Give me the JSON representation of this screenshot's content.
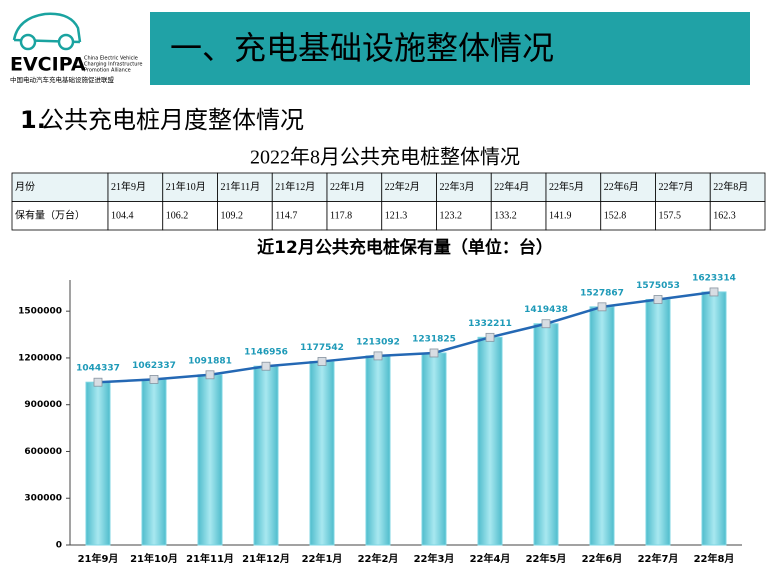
{
  "header": {
    "logo": "EVCIPA",
    "logo_subtitle": [
      "China Electric Vehicle",
      "Charging Infrastructure",
      "Promotion Alliance"
    ],
    "logo_cn": "中国电动汽车充电基础设施促进联盟",
    "title": "一、充电基础设施整体情况"
  },
  "section": {
    "number": "1.",
    "text": "公共充电桩月度整体情况"
  },
  "table": {
    "title": "2022年8月公共充电桩整体情况",
    "header": [
      "月份",
      "21年9月",
      "21年10月",
      "21年11月",
      "21年12月",
      "22年1月",
      "22年2月",
      "22年3月",
      "22年4月",
      "22年5月",
      "22年6月",
      "22年7月",
      "22年8月"
    ],
    "rows": [
      [
        "保有量（万台）",
        104.4,
        106.2,
        109.2,
        114.7,
        117.8,
        121.3,
        123.2,
        133.2,
        141.9,
        152.8,
        157.5,
        162.3
      ]
    ]
  },
  "chart_data": {
    "type": "bar",
    "title": "近12月公共充电桩保有量（单位：台）",
    "categories": [
      "21年9月",
      "21年10月",
      "21年11月",
      "21年12月",
      "22年1月",
      "22年2月",
      "22年3月",
      "22年4月",
      "22年5月",
      "22年6月",
      "22年7月",
      "22年8月"
    ],
    "values": [
      1044337,
      1062337,
      1091881,
      1146956,
      1177542,
      1213092,
      1231825,
      1332211,
      1419438,
      1527867,
      1575053,
      1623314
    ],
    "color": "#7dd6e3",
    "line_color": "#2468b4",
    "show_line": true,
    "data_labels": true,
    "ylim": [
      0,
      1700000
    ],
    "yticks": [
      0,
      300000,
      600000,
      900000,
      1200000,
      1500000
    ]
  }
}
